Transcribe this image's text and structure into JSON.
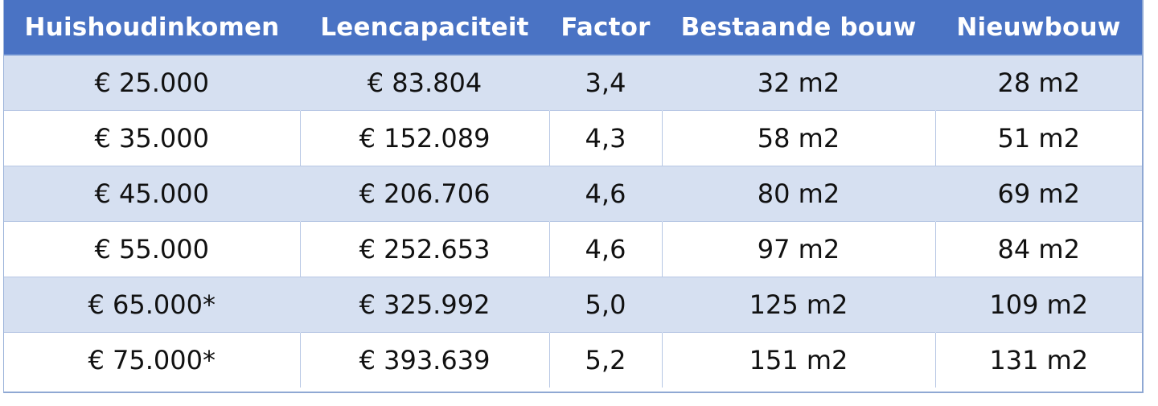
{
  "table": {
    "headers": [
      "Huishoudinkomen",
      "Leencapaciteit",
      "Factor",
      "Bestaande bouw",
      "Nieuwbouw"
    ],
    "rows": [
      [
        "€ 25.000",
        "€ 83.804",
        "3,4",
        "32 m2",
        "28 m2"
      ],
      [
        "€ 35.000",
        "€ 152.089",
        "4,3",
        "58 m2",
        "51 m2"
      ],
      [
        "€ 45.000",
        "€ 206.706",
        "4,6",
        "80 m2",
        "69 m2"
      ],
      [
        "€ 55.000",
        "€ 252.653",
        "4,6",
        "97 m2",
        "84 m2"
      ],
      [
        "€ 65.000*",
        "€ 325.992",
        "5,0",
        "125 m2",
        "109 m2"
      ],
      [
        "€ 75.000*",
        "€ 393.639",
        "5,2",
        "151 m2",
        "131 m2"
      ]
    ]
  },
  "colors": {
    "header_bg": "#4a73c4",
    "header_text": "#ffffff",
    "band_bg": "#d6e0f1",
    "row_bg": "#ffffff"
  }
}
